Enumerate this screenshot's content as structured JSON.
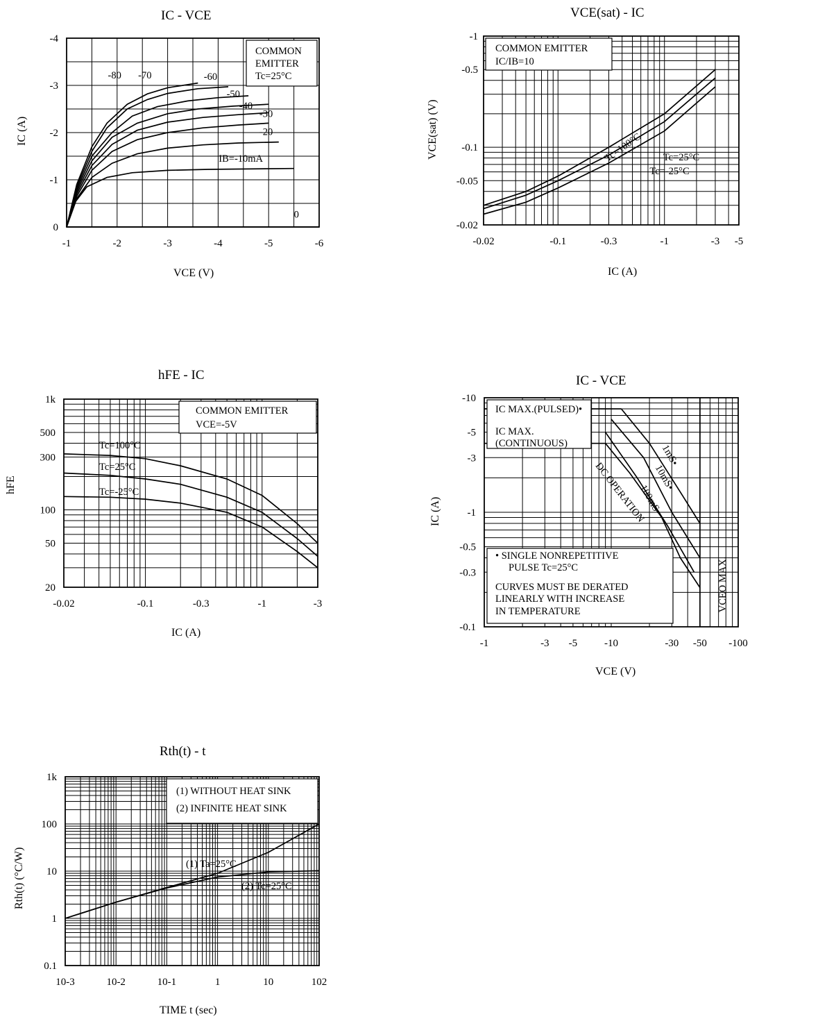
{
  "chart_data": [
    {
      "id": "c1",
      "type": "line",
      "title": "IC - VCE",
      "xlabel": "VCE (V)",
      "ylabel": "IC (A)",
      "xlim": [
        -1,
        -6
      ],
      "ylim": [
        0,
        -4
      ],
      "x_ticks": [
        "-1",
        "-2",
        "-3",
        "-4",
        "-5",
        "-6"
      ],
      "y_ticks": [
        "0",
        "-1",
        "-2",
        "-3",
        "-4"
      ],
      "legend_lines": [
        "COMMON",
        "EMITTER",
        "Tc=25°C"
      ],
      "series": [
        {
          "name": "-80",
          "x": [
            -1,
            -1.2,
            -1.5,
            -1.8,
            -2.2,
            -2.6,
            -3.0,
            -3.6
          ],
          "y": [
            0,
            -0.9,
            -1.7,
            -2.2,
            -2.6,
            -2.82,
            -2.95,
            -3.05
          ]
        },
        {
          "name": "-70",
          "x": [
            -1,
            -1.2,
            -1.5,
            -1.8,
            -2.2,
            -2.6,
            -3.0,
            -3.6,
            -4.2
          ],
          "y": [
            0,
            -0.85,
            -1.6,
            -2.1,
            -2.5,
            -2.7,
            -2.83,
            -2.93,
            -2.97
          ]
        },
        {
          "name": "-60",
          "x": [
            -1,
            -1.2,
            -1.5,
            -1.9,
            -2.3,
            -2.8,
            -3.4,
            -4.0,
            -4.6
          ],
          "y": [
            0,
            -0.8,
            -1.5,
            -2.0,
            -2.35,
            -2.55,
            -2.67,
            -2.74,
            -2.78
          ]
        },
        {
          "name": "-50",
          "x": [
            -1,
            -1.2,
            -1.5,
            -1.9,
            -2.4,
            -3.0,
            -3.6,
            -4.3,
            -5.0
          ],
          "y": [
            0,
            -0.75,
            -1.4,
            -1.9,
            -2.2,
            -2.4,
            -2.5,
            -2.56,
            -2.6
          ]
        },
        {
          "name": "-40",
          "x": [
            -1,
            -1.2,
            -1.5,
            -1.9,
            -2.4,
            -3.0,
            -3.7,
            -4.4,
            -5.0
          ],
          "y": [
            0,
            -0.7,
            -1.3,
            -1.75,
            -2.05,
            -2.22,
            -2.32,
            -2.38,
            -2.42
          ]
        },
        {
          "name": "-30",
          "x": [
            -1,
            -1.2,
            -1.5,
            -1.9,
            -2.4,
            -3.0,
            -3.7,
            -4.4,
            -5.0
          ],
          "y": [
            0,
            -0.65,
            -1.2,
            -1.6,
            -1.85,
            -2.0,
            -2.1,
            -2.16,
            -2.2
          ]
        },
        {
          "name": "-20",
          "x": [
            -1,
            -1.2,
            -1.5,
            -1.9,
            -2.4,
            -3.0,
            -3.7,
            -4.4,
            -5.2
          ],
          "y": [
            0,
            -0.6,
            -1.05,
            -1.35,
            -1.55,
            -1.67,
            -1.74,
            -1.78,
            -1.8
          ]
        },
        {
          "name": "-10",
          "x": [
            -1,
            -1.15,
            -1.4,
            -1.8,
            -2.3,
            -3.0,
            -3.8,
            -4.6,
            -5.5
          ],
          "y": [
            0,
            -0.5,
            -0.85,
            -1.05,
            -1.15,
            -1.2,
            -1.22,
            -1.23,
            -1.24
          ]
        },
        {
          "name": "0",
          "x": [
            -1,
            -6
          ],
          "y": [
            0,
            0
          ]
        }
      ],
      "curve_labels": [
        "-80",
        "-70",
        "-60",
        "-50",
        "-40",
        "-30",
        "-20",
        "IB=-10mA",
        "0"
      ]
    },
    {
      "id": "c2",
      "type": "line",
      "title": "VCE(sat) - IC",
      "xlabel": "IC (A)",
      "ylabel": "VCE(sat) (V)",
      "x_scale": "log",
      "y_scale": "log",
      "xlim": [
        -0.02,
        -5
      ],
      "ylim": [
        -0.02,
        -1
      ],
      "x_ticks": [
        "-0.02",
        "-0.1",
        "-0.3",
        "-1",
        "-3",
        "-5"
      ],
      "y_ticks": [
        "-0.02",
        "-0.05",
        "-0.1",
        "-0.5",
        "-1"
      ],
      "legend_lines": [
        "COMMON EMITTER",
        "IC/IB=10"
      ],
      "series": [
        {
          "name": "Tc=100°C",
          "x": [
            -0.02,
            -0.05,
            -0.1,
            -0.3,
            -1,
            -3
          ],
          "y": [
            -0.03,
            -0.04,
            -0.055,
            -0.1,
            -0.2,
            -0.5
          ]
        },
        {
          "name": "Tc=25°C",
          "x": [
            -0.02,
            -0.05,
            -0.1,
            -0.3,
            -1,
            -3
          ],
          "y": [
            -0.028,
            -0.037,
            -0.05,
            -0.085,
            -0.17,
            -0.42
          ]
        },
        {
          "name": "Tc=-25°C",
          "x": [
            -0.02,
            -0.05,
            -0.1,
            -0.3,
            -1,
            -3
          ],
          "y": [
            -0.025,
            -0.032,
            -0.043,
            -0.072,
            -0.14,
            -0.35
          ]
        }
      ]
    },
    {
      "id": "c3",
      "type": "line",
      "title": "hFE - IC",
      "xlabel": "IC (A)",
      "ylabel": "hFE",
      "x_scale": "log",
      "y_scale": "log",
      "xlim": [
        -0.02,
        -3
      ],
      "ylim": [
        20,
        1000
      ],
      "x_ticks": [
        "-0.02",
        "-0.1",
        "-0.3",
        "-1",
        "-3"
      ],
      "y_ticks": [
        "20",
        "50",
        "100",
        "300",
        "500",
        "1k"
      ],
      "legend_lines": [
        "COMMON EMITTER",
        "VCE=-5V"
      ],
      "series": [
        {
          "name": "Tc=100°C",
          "x": [
            -0.02,
            -0.05,
            -0.1,
            -0.2,
            -0.5,
            -1,
            -2,
            -3
          ],
          "y": [
            320,
            310,
            290,
            250,
            190,
            135,
            75,
            50
          ]
        },
        {
          "name": "Tc=25°C",
          "x": [
            -0.02,
            -0.05,
            -0.1,
            -0.2,
            -0.5,
            -1,
            -2,
            -3
          ],
          "y": [
            215,
            205,
            190,
            170,
            130,
            95,
            55,
            38
          ]
        },
        {
          "name": "Tc=-25°C",
          "x": [
            -0.02,
            -0.05,
            -0.1,
            -0.2,
            -0.5,
            -1,
            -2,
            -3
          ],
          "y": [
            132,
            130,
            125,
            115,
            95,
            70,
            42,
            30
          ]
        }
      ]
    },
    {
      "id": "c4",
      "type": "line",
      "title": "IC - VCE",
      "xlabel": "VCE (V)",
      "ylabel": "IC (A)",
      "x_scale": "log",
      "y_scale": "log",
      "xlim": [
        -1,
        -100
      ],
      "ylim": [
        -0.1,
        -10
      ],
      "x_ticks": [
        "-1",
        "-3",
        "-5",
        "-10",
        "-30",
        "-50",
        "-100"
      ],
      "y_ticks": [
        "-0.1",
        "-0.3",
        "-0.5",
        "-1",
        "-3",
        "-5",
        "-10"
      ],
      "annotations": [
        "IC MAX.(PULSED)•",
        "IC MAX.",
        "(CONTINUOUS)",
        "1mS•",
        "10mS•",
        "100mS•",
        "DC OPERATION",
        "VCEO MAX.",
        "• SINGLE NONREPETITIVE",
        "PULSE Tc=25°C",
        "CURVES MUST BE DERATED",
        "LINEARLY WITH INCREASE",
        "IN TEMPERATURE"
      ],
      "series": [
        {
          "name": "IC MAX.(PULSED)",
          "x": [
            -1,
            -12
          ],
          "y": [
            -8,
            -8
          ]
        },
        {
          "name": "IC MAX.(CONTINUOUS)",
          "x": [
            -1,
            -9
          ],
          "y": [
            -4,
            -4
          ]
        },
        {
          "name": "1mS",
          "x": [
            -12,
            -20,
            -35,
            -50
          ],
          "y": [
            -8,
            -4,
            -1.5,
            -0.8
          ]
        },
        {
          "name": "10mS",
          "x": [
            -10,
            -18,
            -30,
            -50
          ],
          "y": [
            -6.5,
            -3,
            -1.0,
            -0.4
          ]
        },
        {
          "name": "100mS",
          "x": [
            -9,
            -16,
            -28,
            -45
          ],
          "y": [
            -5,
            -2,
            -0.75,
            -0.3
          ]
        },
        {
          "name": "DC OPERATION",
          "x": [
            -9,
            -14,
            -25,
            -35,
            -50
          ],
          "y": [
            -4,
            -2.2,
            -0.9,
            -0.4,
            -0.22
          ]
        },
        {
          "name": "VCEO MAX.",
          "x": [
            -50,
            -50
          ],
          "y": [
            -10,
            -0.1
          ]
        }
      ]
    },
    {
      "id": "c5",
      "type": "line",
      "title": "Rth(t) - t",
      "xlabel": "TIME t (sec)",
      "ylabel": "Rth(t) (°C/W)",
      "x_scale": "log",
      "y_scale": "log",
      "xlim": [
        0.001,
        100
      ],
      "ylim": [
        0.1,
        1000
      ],
      "x_ticks": [
        "10-3",
        "10-2",
        "10-1",
        "1",
        "10",
        "102"
      ],
      "y_ticks": [
        "0.1",
        "1",
        "10",
        "100",
        "1k"
      ],
      "legend_lines": [
        "(1) WITHOUT HEAT SINK",
        "(2) INFINITE HEAT SINK"
      ],
      "series": [
        {
          "name": "(1) Ta=25°C",
          "x": [
            0.001,
            0.01,
            0.1,
            1,
            10,
            100
          ],
          "y": [
            1,
            2.2,
            4.5,
            9,
            25,
            100
          ]
        },
        {
          "name": "(2) Tc=25°C",
          "x": [
            0.001,
            0.01,
            0.1,
            1,
            10,
            100
          ],
          "y": [
            1,
            2.2,
            4.4,
            7.5,
            9.6,
            10.2
          ]
        }
      ],
      "curve_labels": [
        "(1) Ta=25°C",
        "(2) Tc=25°C"
      ]
    }
  ]
}
